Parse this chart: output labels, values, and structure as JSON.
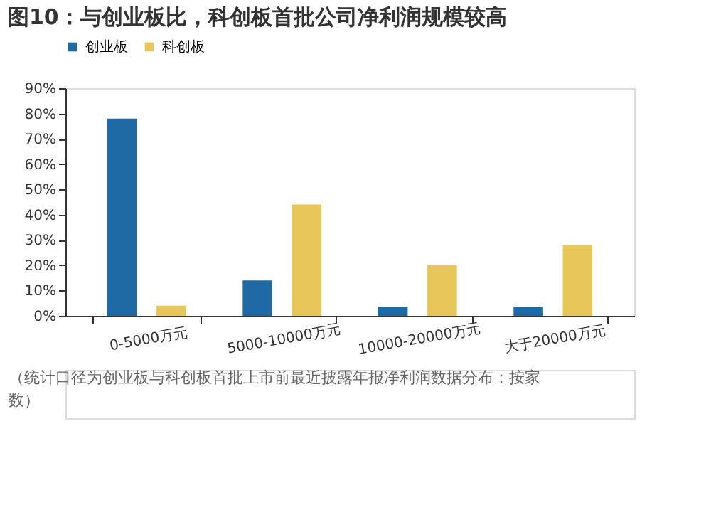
{
  "chart_data": {
    "type": "bar",
    "title": "图10：与创业板比，科创板首批公司净利润规模较高",
    "categories": [
      "0-5000万元",
      "5000-10000万元",
      "10000-20000万元",
      "大于20000万元"
    ],
    "series": [
      {
        "name": "创业板",
        "color": "#1f6aa5",
        "values": [
          78,
          14,
          3.5,
          3.5
        ]
      },
      {
        "name": "科创板",
        "color": "#e8c65a",
        "values": [
          4,
          44,
          20,
          28
        ]
      }
    ],
    "ylim": [
      0,
      90
    ],
    "yticks": [
      {
        "value": 0,
        "label": "0%"
      },
      {
        "value": 10,
        "label": "10%"
      },
      {
        "value": 20,
        "label": "20%"
      },
      {
        "value": 30,
        "label": "30%"
      },
      {
        "value": 40,
        "label": "40%"
      },
      {
        "value": 50,
        "label": "50%"
      },
      {
        "value": 60,
        "label": "60%"
      },
      {
        "value": 70,
        "label": "70%"
      },
      {
        "value": 80,
        "label": "80%"
      },
      {
        "value": 90,
        "label": "90%"
      }
    ],
    "grid": false,
    "legend": "top",
    "annotations": [
      "（统计口径为创业板与科创板首批上市前最近披露年报净利润数据分布：按家数）"
    ]
  }
}
